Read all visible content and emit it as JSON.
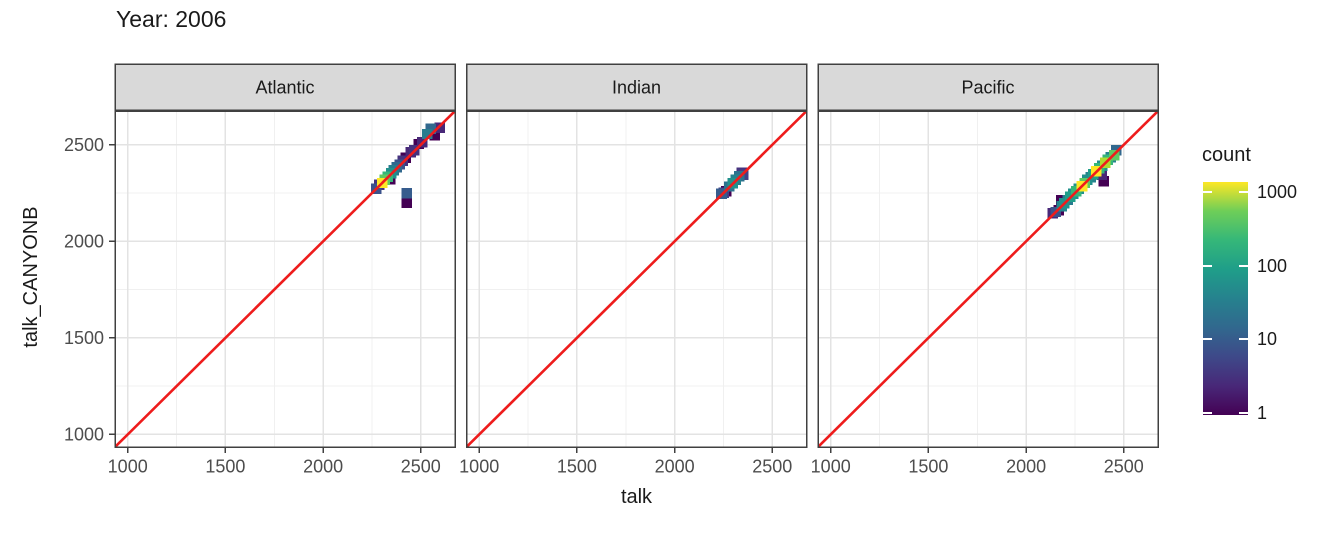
{
  "title": "Year: 2006",
  "axes": {
    "x_label": "talk",
    "y_label": "talk_CANYONB",
    "x_ticks": [
      1000,
      1500,
      2000,
      2500
    ],
    "y_ticks": [
      1000,
      1500,
      2000,
      2500
    ],
    "x_minor_ticks": [
      1250,
      1750,
      2250
    ],
    "y_minor_ticks": [
      1250,
      1750,
      2250
    ],
    "xlim": [
      935,
      2675
    ],
    "ylim": [
      935,
      2675
    ]
  },
  "legend": {
    "title": "count",
    "tick_labels": [
      "1000",
      "100",
      "10",
      "1"
    ],
    "tick_values": [
      1000,
      100,
      10,
      1
    ],
    "scale": "log10",
    "gradient_stops_bottom_to_top": [
      "#440154",
      "#482878",
      "#3e4989",
      "#31688e",
      "#26828e",
      "#1f9e89",
      "#35b779",
      "#6ece58",
      "#fde725"
    ]
  },
  "colors": {
    "reference_line": "#ee1c1c",
    "grid_major": "#e3e3e3",
    "grid_minor": "#f0f0f0",
    "panel_border": "#404040",
    "strip_background": "#d9d9d9",
    "strip_text": "#1a1a1a",
    "axis_text": "#4d4d4d",
    "panel_background": "#ffffff"
  },
  "chart_data": {
    "type": "heatmap",
    "subtype": "bin2d",
    "title": "Year: 2006",
    "xlabel": "talk",
    "ylabel": "talk_CANYONB",
    "xlim": [
      935,
      2675
    ],
    "ylim": [
      935,
      2675
    ],
    "grid": "on",
    "legend_position": "right",
    "color_scale": {
      "name": "count",
      "palette": "viridis",
      "scale": "log10",
      "range": [
        1,
        1000
      ]
    },
    "reference_line": {
      "slope": 1,
      "intercept": 0,
      "color": "#ee1c1c"
    },
    "bin_size": 54,
    "bins_format": [
      "x",
      "y",
      "count",
      "color"
    ],
    "facets": [
      {
        "label": "Atlantic",
        "bins": [
          [
            2272,
            2272,
            6,
            "#3b528b"
          ],
          [
            2288,
            2292,
            2,
            "#46327e"
          ],
          [
            2302,
            2302,
            950,
            "#fde725"
          ],
          [
            2316,
            2318,
            420,
            "#5ec962"
          ],
          [
            2330,
            2334,
            260,
            "#35b779"
          ],
          [
            2344,
            2322,
            1,
            "#440154"
          ],
          [
            2348,
            2352,
            110,
            "#21918c"
          ],
          [
            2362,
            2368,
            45,
            "#287c8e"
          ],
          [
            2378,
            2384,
            16,
            "#31688e"
          ],
          [
            2392,
            2398,
            6,
            "#3b528b"
          ],
          [
            2408,
            2418,
            2,
            "#46327e"
          ],
          [
            2424,
            2434,
            1,
            "#440154"
          ],
          [
            2448,
            2462,
            2,
            "#482878"
          ],
          [
            2466,
            2472,
            2,
            "#46327e"
          ],
          [
            2490,
            2504,
            1,
            "#440154"
          ],
          [
            2508,
            2514,
            2,
            "#482878"
          ],
          [
            2532,
            2556,
            35,
            "#287c8e"
          ],
          [
            2550,
            2582,
            14,
            "#31688e"
          ],
          [
            2572,
            2550,
            1,
            "#440154"
          ],
          [
            2596,
            2588,
            2,
            "#482878"
          ],
          [
            2429,
            2250,
            9,
            "#365c8d"
          ],
          [
            2429,
            2200,
            1,
            "#440154"
          ]
        ]
      },
      {
        "label": "Indian",
        "bins": [
          [
            2240,
            2246,
            8,
            "#365c8d"
          ],
          [
            2252,
            2252,
            3,
            "#424086"
          ],
          [
            2264,
            2260,
            1,
            "#440154"
          ],
          [
            2280,
            2284,
            25,
            "#2c728e"
          ],
          [
            2298,
            2300,
            80,
            "#21918c"
          ],
          [
            2312,
            2318,
            50,
            "#26828e"
          ],
          [
            2330,
            2336,
            30,
            "#2c728e"
          ],
          [
            2344,
            2356,
            2,
            "#46327e"
          ],
          [
            2352,
            2344,
            3,
            "#424086"
          ]
        ]
      },
      {
        "label": "Pacific",
        "bins": [
          [
            2136,
            2146,
            2,
            "#482878"
          ],
          [
            2152,
            2152,
            6,
            "#3b528b"
          ],
          [
            2180,
            2214,
            1,
            "#440154"
          ],
          [
            2168,
            2162,
            1,
            "#440154"
          ],
          [
            2182,
            2182,
            55,
            "#24868e"
          ],
          [
            2196,
            2198,
            85,
            "#21918c"
          ],
          [
            2212,
            2214,
            40,
            "#287c8e"
          ],
          [
            2226,
            2230,
            160,
            "#1f9e89"
          ],
          [
            2242,
            2246,
            90,
            "#21918c"
          ],
          [
            2256,
            2260,
            280,
            "#35b779"
          ],
          [
            2270,
            2272,
            90,
            "#21918c"
          ],
          [
            2286,
            2286,
            1000,
            "#fde725"
          ],
          [
            2300,
            2302,
            420,
            "#5ec962"
          ],
          [
            2314,
            2318,
            90,
            "#21918c"
          ],
          [
            2330,
            2332,
            30,
            "#26828e"
          ],
          [
            2344,
            2348,
            160,
            "#1f9e89"
          ],
          [
            2360,
            2362,
            950,
            "#fde725"
          ],
          [
            2374,
            2378,
            280,
            "#35b779"
          ],
          [
            2390,
            2392,
            90,
            "#21918c"
          ],
          [
            2404,
            2408,
            700,
            "#addc30"
          ],
          [
            2418,
            2422,
            280,
            "#35b779"
          ],
          [
            2434,
            2436,
            30,
            "#26828e"
          ],
          [
            2452,
            2446,
            420,
            "#5ec962"
          ],
          [
            2462,
            2472,
            16,
            "#31688e"
          ],
          [
            2398,
            2312,
            1,
            "#440154"
          ],
          [
            2386,
            2344,
            2,
            "#482878"
          ]
        ]
      }
    ]
  }
}
